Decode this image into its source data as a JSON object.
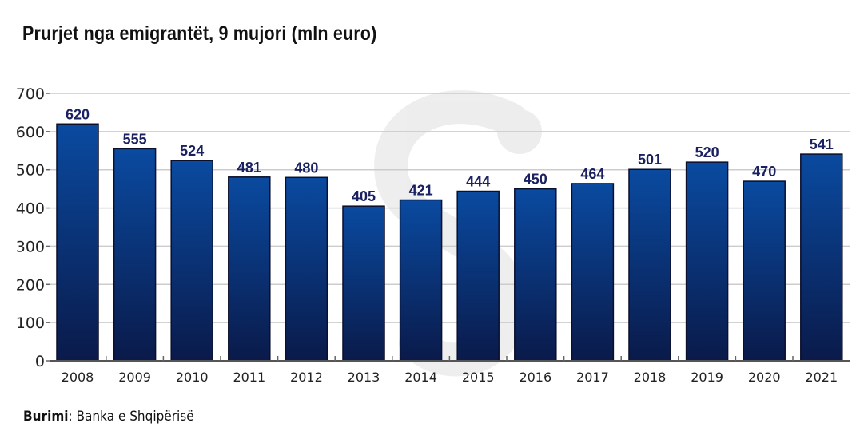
{
  "chart_data": {
    "type": "bar",
    "title": "Prurjet nga emigrantët, 9 mujori (mln euro)",
    "xlabel": "",
    "ylabel": "",
    "categories": [
      "2008",
      "2009",
      "2010",
      "2011",
      "2012",
      "2013",
      "2014",
      "2015",
      "2016",
      "2017",
      "2018",
      "2019",
      "2020",
      "2021"
    ],
    "values": [
      620,
      555,
      524,
      481,
      480,
      405,
      421,
      444,
      450,
      464,
      501,
      520,
      470,
      541
    ],
    "ylim": [
      0,
      700
    ],
    "yticks": [
      0,
      100,
      200,
      300,
      400,
      500,
      600,
      700
    ],
    "grid": true,
    "legend": "none",
    "bar_color_top": "#0a4aa0",
    "bar_color_bottom": "#0a1a4a",
    "label_color": "#1a2060"
  },
  "source": {
    "label": "Burimi",
    "text": ": Banka e Shqipërisë"
  }
}
